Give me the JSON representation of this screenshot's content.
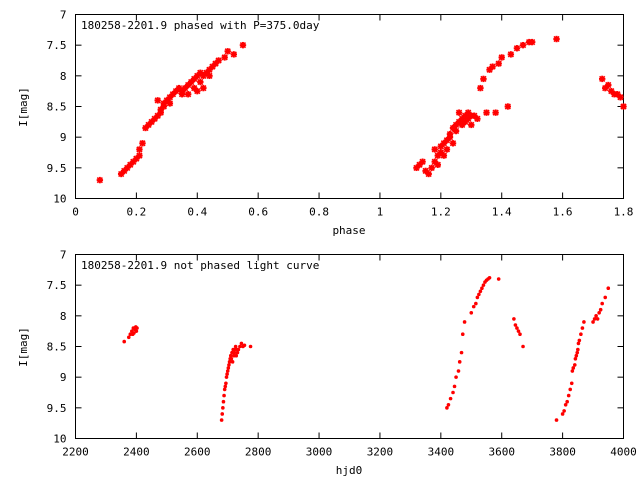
{
  "chart_data": [
    {
      "type": "scatter",
      "title": "180258-2201.9 phased with P=375.0day",
      "xlabel": "phase",
      "ylabel": "I[mag]",
      "xlim": [
        0,
        1.8
      ],
      "ylim": [
        10,
        7
      ],
      "y_inverted": true,
      "grid": false,
      "legend": "none",
      "marker": "star",
      "color": "#ff0000",
      "x_ticks": [
        "0",
        "0.2",
        "0.4",
        "0.6",
        "0.8",
        "1",
        "1.2",
        "1.4",
        "1.6",
        "1.8"
      ],
      "y_ticks": [
        "7",
        "7.5",
        "8",
        "8.5",
        "9",
        "9.5",
        "10"
      ],
      "series": [
        {
          "x": [
            0.08,
            0.15,
            0.16,
            0.17,
            0.18,
            0.19,
            0.2,
            0.21,
            0.21,
            0.22,
            0.23,
            0.24,
            0.25,
            0.26,
            0.27,
            0.27,
            0.28,
            0.28,
            0.29,
            0.29,
            0.3,
            0.31,
            0.31,
            0.32,
            0.33,
            0.34,
            0.35,
            0.35,
            0.36,
            0.37,
            0.37,
            0.38,
            0.39,
            0.39,
            0.4,
            0.4,
            0.41,
            0.41,
            0.42,
            0.42,
            0.43,
            0.44,
            0.44,
            0.45,
            0.46,
            0.47,
            0.49,
            0.5,
            0.52,
            0.55,
            1.12,
            1.13,
            1.14,
            1.15,
            1.16,
            1.17,
            1.18,
            1.18,
            1.19,
            1.19,
            1.2,
            1.2,
            1.21,
            1.21,
            1.22,
            1.22,
            1.23,
            1.23,
            1.24,
            1.24,
            1.25,
            1.25,
            1.26,
            1.26,
            1.27,
            1.27,
            1.28,
            1.28,
            1.29,
            1.29,
            1.3,
            1.3,
            1.31,
            1.32,
            1.33,
            1.34,
            1.35,
            1.36,
            1.37,
            1.38,
            1.39,
            1.4,
            1.42,
            1.43,
            1.45,
            1.47,
            1.49,
            1.5,
            1.58,
            1.73,
            1.74,
            1.75,
            1.76,
            1.77,
            1.78,
            1.79,
            1.8
          ],
          "y": [
            9.7,
            9.6,
            9.55,
            9.5,
            9.45,
            9.4,
            9.35,
            9.3,
            9.2,
            9.1,
            8.85,
            8.8,
            8.75,
            8.7,
            8.65,
            8.4,
            8.6,
            8.55,
            8.5,
            8.45,
            8.4,
            8.35,
            8.45,
            8.3,
            8.25,
            8.2,
            8.3,
            8.25,
            8.2,
            8.15,
            8.3,
            8.1,
            8.05,
            8.2,
            8.0,
            8.25,
            7.95,
            8.1,
            8.0,
            8.2,
            7.95,
            8.0,
            7.9,
            7.85,
            7.8,
            7.75,
            7.7,
            7.6,
            7.65,
            7.5,
            9.5,
            9.45,
            9.4,
            9.55,
            9.6,
            9.5,
            9.4,
            9.2,
            9.3,
            9.45,
            9.25,
            9.15,
            9.1,
            9.3,
            9.05,
            9.2,
            9.0,
            8.95,
            8.85,
            9.1,
            8.8,
            8.9,
            8.75,
            8.6,
            8.7,
            8.8,
            8.65,
            8.75,
            8.6,
            8.7,
            8.65,
            8.8,
            8.65,
            8.7,
            8.2,
            8.05,
            8.6,
            7.9,
            7.85,
            8.6,
            7.8,
            7.7,
            8.5,
            7.65,
            7.55,
            7.5,
            7.45,
            7.45,
            7.4,
            8.05,
            8.2,
            8.15,
            8.25,
            8.3,
            8.3,
            8.35,
            8.5
          ]
        }
      ]
    },
    {
      "type": "scatter",
      "title": "180258-2201.9 not phased light curve",
      "xlabel": "hjd0",
      "ylabel": "I[mag]",
      "xlim": [
        2200,
        4000
      ],
      "ylim": [
        10,
        7
      ],
      "y_inverted": true,
      "grid": false,
      "legend": "none",
      "marker": "dot",
      "color": "#ff0000",
      "x_ticks": [
        "2200",
        "2400",
        "2600",
        "2800",
        "3000",
        "3200",
        "3400",
        "3600",
        "3800",
        "4000"
      ],
      "y_ticks": [
        "7",
        "7.5",
        "8",
        "8.5",
        "9",
        "9.5",
        "10"
      ],
      "series": [
        {
          "x": [
            2360,
            2375,
            2380,
            2385,
            2388,
            2390,
            2392,
            2395,
            2398,
            2400,
            2402,
            2680,
            2682,
            2684,
            2686,
            2688,
            2690,
            2692,
            2694,
            2696,
            2698,
            2700,
            2702,
            2704,
            2706,
            2708,
            2710,
            2712,
            2714,
            2716,
            2718,
            2720,
            2722,
            2724,
            2726,
            2728,
            2730,
            2732,
            2735,
            2740,
            2745,
            2750,
            2755,
            2775,
            3420,
            3425,
            3432,
            3440,
            3445,
            3450,
            3458,
            3462,
            3468,
            3472,
            3478,
            3500,
            3508,
            3515,
            3520,
            3525,
            3530,
            3535,
            3540,
            3545,
            3550,
            3555,
            3560,
            3590,
            3640,
            3645,
            3650,
            3655,
            3660,
            3670,
            3780,
            3800,
            3805,
            3810,
            3815,
            3820,
            3825,
            3830,
            3832,
            3835,
            3840,
            3842,
            3845,
            3848,
            3850,
            3852,
            3855,
            3860,
            3865,
            3870,
            3900,
            3905,
            3910,
            3915,
            3920,
            3925,
            3930,
            3940,
            3950
          ],
          "y": [
            8.42,
            8.35,
            8.3,
            8.25,
            8.3,
            8.2,
            8.28,
            8.22,
            8.18,
            8.25,
            8.2,
            9.7,
            9.6,
            9.5,
            9.4,
            9.3,
            9.2,
            9.15,
            9.1,
            9.0,
            8.95,
            8.9,
            8.85,
            8.8,
            8.75,
            8.7,
            8.65,
            8.7,
            8.6,
            8.75,
            8.55,
            8.65,
            8.6,
            8.55,
            8.5,
            8.65,
            8.55,
            8.6,
            8.55,
            8.5,
            8.45,
            8.5,
            8.48,
            8.5,
            9.5,
            9.45,
            9.35,
            9.25,
            9.15,
            9.0,
            8.9,
            8.75,
            8.6,
            8.3,
            8.1,
            7.95,
            7.85,
            7.8,
            7.7,
            7.65,
            7.6,
            7.55,
            7.5,
            7.45,
            7.42,
            7.4,
            7.38,
            7.4,
            8.05,
            8.15,
            8.2,
            8.25,
            8.3,
            8.5,
            9.7,
            9.6,
            9.55,
            9.45,
            9.4,
            9.3,
            9.2,
            9.1,
            8.9,
            8.85,
            8.8,
            8.7,
            8.65,
            8.6,
            8.55,
            8.45,
            8.4,
            8.3,
            8.2,
            8.1,
            8.1,
            8.05,
            8.0,
            8.05,
            7.95,
            7.9,
            7.8,
            7.7,
            7.55
          ]
        }
      ]
    }
  ]
}
